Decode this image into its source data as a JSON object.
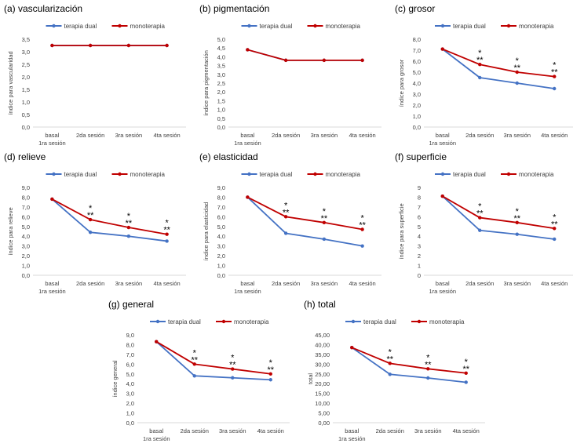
{
  "legend": {
    "dual": "terapia dual",
    "mono": "monoterapia"
  },
  "colors": {
    "dual": "#4472C4",
    "mono": "#C00000"
  },
  "chart_data": [
    {
      "type": "line",
      "title": "(a) vascularización",
      "ylabel": "índice para vascularidad",
      "categories": [
        "basal|1ra sesión",
        "2da sesión",
        "3ra sesión",
        "4ta sesión"
      ],
      "ylim": [
        0,
        3.5
      ],
      "ystep": 0.5,
      "decimals": 1,
      "series": [
        {
          "name": "terapia dual",
          "values": [
            3.25,
            3.25,
            3.25,
            3.25
          ]
        },
        {
          "name": "monoterapia",
          "values": [
            3.25,
            3.25,
            3.25,
            3.25
          ]
        }
      ],
      "annotations": [
        "",
        "",
        "",
        ""
      ],
      "legend_position": "top"
    },
    {
      "type": "line",
      "title": "(b) pigmentación",
      "ylabel": "índice para pigmentación",
      "categories": [
        "basal|1ra sesión",
        "2da sesión",
        "3ra sesión",
        "4ta sesión"
      ],
      "ylim": [
        0,
        5.0
      ],
      "ystep": 0.5,
      "decimals": 1,
      "series": [
        {
          "name": "terapia dual",
          "values": [
            4.4,
            3.8,
            3.8,
            3.8
          ]
        },
        {
          "name": "monoterapia",
          "values": [
            4.4,
            3.8,
            3.8,
            3.8
          ]
        }
      ],
      "annotations": [
        "",
        "",
        "",
        ""
      ],
      "legend_position": "top"
    },
    {
      "type": "line",
      "title": "(c) grosor",
      "ylabel": "índice para grosor",
      "categories": [
        "basal|1ra sesión",
        "2da sesión",
        "3ra sesión",
        "4ta sesión"
      ],
      "ylim": [
        0,
        8.0
      ],
      "ystep": 1,
      "decimals": 1,
      "series": [
        {
          "name": "terapia dual",
          "values": [
            7.1,
            4.5,
            4.0,
            3.5
          ]
        },
        {
          "name": "monoterapia",
          "values": [
            7.1,
            5.7,
            5.0,
            4.6
          ]
        }
      ],
      "annotations": [
        "",
        "*|**",
        "*|**",
        "*|**"
      ],
      "legend_position": "top"
    },
    {
      "type": "line",
      "title": "(d) relieve",
      "ylabel": "índice para relieve",
      "categories": [
        "basal|1ra sesión",
        "2da sesión",
        "3ra sesión",
        "4ta sesión"
      ],
      "ylim": [
        0,
        9.0
      ],
      "ystep": 1,
      "decimals": 1,
      "series": [
        {
          "name": "terapia dual",
          "values": [
            7.8,
            4.4,
            4.0,
            3.5
          ]
        },
        {
          "name": "monoterapia",
          "values": [
            7.8,
            5.7,
            4.9,
            4.2
          ]
        }
      ],
      "annotations": [
        "",
        "*|**",
        "*|**",
        "*|**"
      ],
      "legend_position": "top"
    },
    {
      "type": "line",
      "title": "(e) elasticidad",
      "ylabel": "índice para elasticidad",
      "categories": [
        "basal|1ra sesión",
        "2da sesión",
        "3ra sesión",
        "4ta sesión"
      ],
      "ylim": [
        0,
        9.0
      ],
      "ystep": 1,
      "decimals": 1,
      "series": [
        {
          "name": "terapia dual",
          "values": [
            8.0,
            4.3,
            3.7,
            3.0
          ]
        },
        {
          "name": "monoterapia",
          "values": [
            8.0,
            6.0,
            5.4,
            4.7
          ]
        }
      ],
      "annotations": [
        "",
        "*|**",
        "*|**",
        "*|**"
      ],
      "legend_position": "top"
    },
    {
      "type": "line",
      "title": "(f) superficie",
      "ylabel": "índice para superficie",
      "categories": [
        "basal|1ra sesión",
        "2da sesión",
        "3ra sesión",
        "4ta sesión"
      ],
      "ylim": [
        0,
        9
      ],
      "ystep": 1,
      "decimals": 0,
      "series": [
        {
          "name": "terapia dual",
          "values": [
            8.1,
            4.6,
            4.2,
            3.7
          ]
        },
        {
          "name": "monoterapia",
          "values": [
            8.1,
            5.9,
            5.4,
            4.8
          ]
        }
      ],
      "annotations": [
        "",
        "*|**",
        "*|**",
        "*|**"
      ],
      "legend_position": "top"
    },
    {
      "type": "line",
      "title": "(g) general",
      "ylabel": "índice general",
      "categories": [
        "basal|1ra sesión",
        "2da sesión",
        "3ra sesión",
        "4ta sesión"
      ],
      "ylim": [
        0,
        9.0
      ],
      "ystep": 1,
      "decimals": 1,
      "series": [
        {
          "name": "terapia dual",
          "values": [
            8.3,
            4.8,
            4.6,
            4.4
          ]
        },
        {
          "name": "monoterapia",
          "values": [
            8.3,
            6.0,
            5.5,
            5.0
          ]
        }
      ],
      "annotations": [
        "",
        "*|**",
        "*|**",
        "*|**"
      ],
      "legend_position": "top"
    },
    {
      "type": "line",
      "title": "(h) total",
      "ylabel": "total",
      "categories": [
        "basal|1ra sesión",
        "2da sesión",
        "3ra sesión",
        "4ta sesión"
      ],
      "ylim": [
        0,
        45.0
      ],
      "ystep": 5,
      "decimals": 2,
      "series": [
        {
          "name": "terapia dual",
          "values": [
            38.5,
            24.8,
            22.9,
            20.7
          ]
        },
        {
          "name": "monoterapia",
          "values": [
            38.5,
            30.4,
            27.6,
            25.4
          ]
        }
      ],
      "annotations": [
        "",
        "*|**",
        "*|**",
        "*|**"
      ],
      "legend_position": "top"
    }
  ]
}
